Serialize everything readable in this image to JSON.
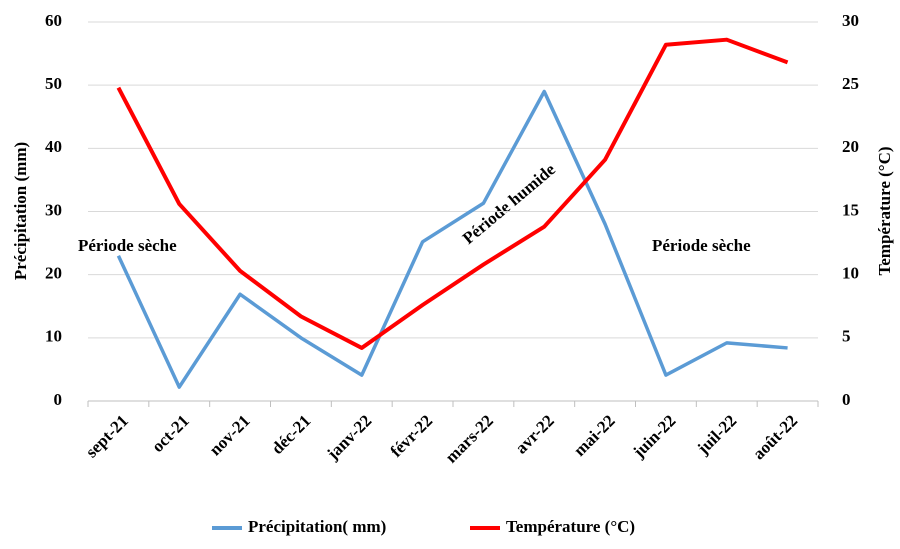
{
  "chart_data": {
    "type": "line",
    "categories": [
      "sept-21",
      "oct-21",
      "nov-21",
      "déc-21",
      "janv-22",
      "févr-22",
      "mars-22",
      "avr-22",
      "mai-22",
      "juin-22",
      "juil-22",
      "août-22"
    ],
    "series": [
      {
        "name": "Précipitation( mm)",
        "color": "#5b9bd5",
        "values": [
          23,
          2.2,
          16.9,
          10,
          4.1,
          25.2,
          31.3,
          49,
          28,
          4.1,
          9.2,
          8.4
        ]
      },
      {
        "name": "Température (°C)",
        "color": "#ff0000",
        "axis": "y2",
        "values": [
          24.8,
          15.6,
          10.3,
          6.7,
          4.2,
          7.6,
          10.8,
          13.8,
          19.1,
          28.2,
          28.6,
          26.8
        ]
      }
    ],
    "ylabel": "Précipitation (mm)",
    "y2label": "Température (°C)",
    "ylim": [
      0,
      60
    ],
    "yticks": [
      0,
      10,
      20,
      30,
      40,
      50,
      60
    ],
    "y2lim": [
      0,
      30
    ],
    "y2ticks": [
      0,
      5,
      10,
      15,
      20,
      25,
      30
    ],
    "grid": true,
    "legend": "bottom",
    "annotations": [
      "Période sèche",
      "Période humide",
      "Période sèche"
    ]
  }
}
